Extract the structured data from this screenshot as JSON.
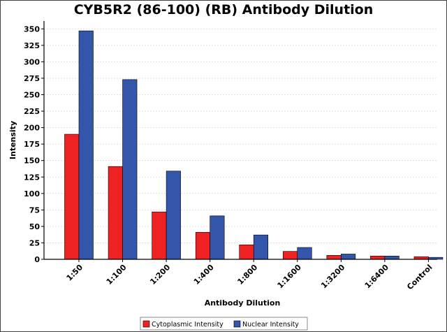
{
  "chart_data": {
    "type": "bar",
    "title": "CYB5R2 (86-100) (RB) Antibody Dilution",
    "xlabel": "Antibody Dilution",
    "ylabel": "Intensity",
    "categories": [
      "1:50",
      "1:100",
      "1:200",
      "1:400",
      "1:800",
      "1:1600",
      "1:3200",
      "1:6400",
      "Control"
    ],
    "series": [
      {
        "name": "Cytoplasmic Intensity",
        "color": "#ee2222",
        "values": [
          190,
          141,
          72,
          41,
          22,
          12,
          6,
          5,
          4
        ]
      },
      {
        "name": "Nuclear Intensity",
        "color": "#3355aa",
        "values": [
          347,
          273,
          134,
          66,
          37,
          18,
          8,
          5,
          3
        ]
      }
    ],
    "ylim": [
      0,
      362
    ],
    "yticks": [
      0,
      25,
      50,
      75,
      100,
      125,
      150,
      175,
      200,
      225,
      250,
      275,
      300,
      325,
      350
    ],
    "grid": true,
    "legend_position": "bottom-center"
  }
}
